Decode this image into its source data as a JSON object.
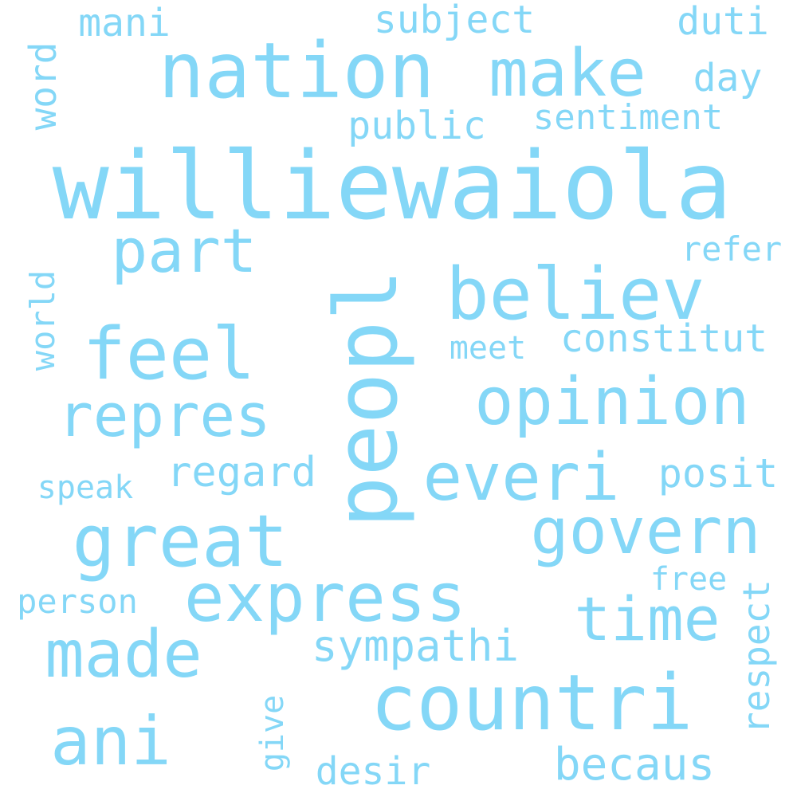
{
  "colors": {
    "background": "#ffffff",
    "word": "#84d7f7"
  },
  "words": [
    {
      "key": "williewaiola",
      "text": "williewaiola"
    },
    {
      "key": "nation",
      "text": "nation"
    },
    {
      "key": "make",
      "text": "make"
    },
    {
      "key": "peopl",
      "text": "peopl"
    },
    {
      "key": "believ",
      "text": "believ"
    },
    {
      "key": "opinion",
      "text": "opinion"
    },
    {
      "key": "countri",
      "text": "countri"
    },
    {
      "key": "feel",
      "text": "feel"
    },
    {
      "key": "great",
      "text": "great"
    },
    {
      "key": "express",
      "text": "express"
    },
    {
      "key": "govern",
      "text": "govern"
    },
    {
      "key": "everi",
      "text": "everi"
    },
    {
      "key": "repres",
      "text": "repres"
    },
    {
      "key": "made",
      "text": "made"
    },
    {
      "key": "ani",
      "text": "ani"
    },
    {
      "key": "time",
      "text": "time"
    },
    {
      "key": "part",
      "text": "part"
    },
    {
      "key": "sympathi",
      "text": "sympathi"
    },
    {
      "key": "becaus",
      "text": "becaus"
    },
    {
      "key": "regard",
      "text": "regard"
    },
    {
      "key": "constitut",
      "text": "constitut"
    },
    {
      "key": "posit",
      "text": "posit"
    },
    {
      "key": "public",
      "text": "public"
    },
    {
      "key": "subject",
      "text": "subject"
    },
    {
      "key": "mani",
      "text": "mani"
    },
    {
      "key": "duti",
      "text": "duti"
    },
    {
      "key": "day",
      "text": "day"
    },
    {
      "key": "sentiment",
      "text": "sentiment"
    },
    {
      "key": "refer",
      "text": "refer"
    },
    {
      "key": "meet",
      "text": "meet"
    },
    {
      "key": "speak",
      "text": "speak"
    },
    {
      "key": "free",
      "text": "free"
    },
    {
      "key": "person",
      "text": "person"
    },
    {
      "key": "desir",
      "text": "desir"
    },
    {
      "key": "word",
      "text": "word"
    },
    {
      "key": "world",
      "text": "world"
    },
    {
      "key": "respect",
      "text": "respect"
    },
    {
      "key": "give",
      "text": "give"
    }
  ]
}
